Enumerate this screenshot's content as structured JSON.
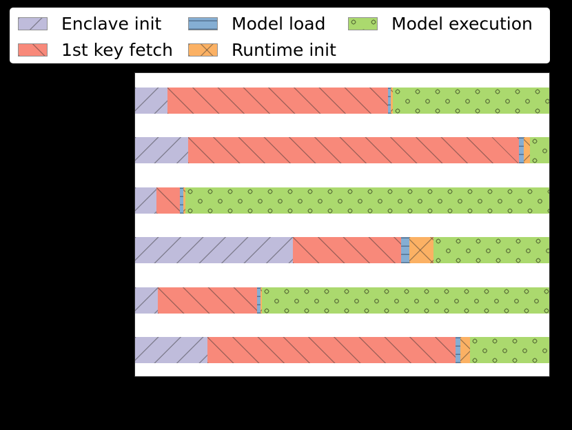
{
  "background_color": "#000000",
  "plot_background_color": "#ffffff",
  "legend": {
    "entries": [
      {
        "label": "Enclave init",
        "color": "#bfbcdb",
        "hatch": "diagonal-forward"
      },
      {
        "label": "1st key fetch",
        "color": "#f8897a",
        "hatch": "diagonal-back"
      },
      {
        "label": "Model load",
        "color": "#85aed3",
        "hatch": "horizontal"
      },
      {
        "label": "Runtime init",
        "color": "#fbb164",
        "hatch": "cross"
      },
      {
        "label": "Model execution",
        "color": "#abd96e",
        "hatch": "dots"
      }
    ]
  },
  "chart_data": {
    "type": "bar",
    "orientation": "horizontal-stacked",
    "title": "",
    "xlabel": "",
    "ylabel": "",
    "unit": "percent-of-row-width",
    "num_bars": 6,
    "axis_tick_labels_visible": false,
    "legend_position": "top-left",
    "series": [
      {
        "name": "Enclave init",
        "values": [
          7.8,
          12.8,
          5.1,
          38.1,
          5.5,
          17.4
        ]
      },
      {
        "name": "1st key fetch",
        "values": [
          53.2,
          79.8,
          5.8,
          26.2,
          24.0,
          59.9
        ]
      },
      {
        "name": "Model load",
        "values": [
          0.7,
          1.3,
          0.7,
          2.0,
          0.8,
          1.3
        ]
      },
      {
        "name": "Runtime init",
        "values": [
          0.5,
          1.5,
          0.5,
          5.8,
          0.3,
          2.3
        ]
      },
      {
        "name": "Model execution",
        "values": [
          37.8,
          4.6,
          87.9,
          27.9,
          69.4,
          19.1
        ]
      }
    ]
  }
}
